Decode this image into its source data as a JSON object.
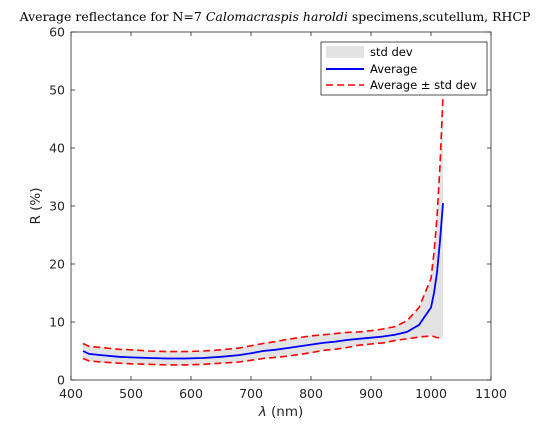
{
  "chart_data": {
    "type": "line",
    "title_prefix": "Average reflectance for N=7 ",
    "title_species": "Calomacraspis haroldi",
    "title_suffix": " specimens,scutellum, RHCP",
    "xlabel_symbol": "λ",
    "xlabel_unit": " (nm)",
    "ylabel": "R (%)",
    "xlim": [
      400,
      1100
    ],
    "ylim": [
      0,
      60
    ],
    "xticks": [
      400,
      500,
      600,
      700,
      800,
      900,
      1000,
      1100
    ],
    "yticks": [
      0,
      10,
      20,
      30,
      40,
      50,
      60
    ],
    "grid": false,
    "legend_position": "top-right",
    "legend": [
      "std dev",
      "Average",
      "Average ± std dev"
    ],
    "colors": {
      "std_fill": "#e3e3e3",
      "average": "#0000ff",
      "bounds": "#ff0000"
    },
    "x": [
      420,
      430,
      450,
      480,
      500,
      530,
      560,
      590,
      620,
      650,
      680,
      700,
      720,
      740,
      760,
      780,
      800,
      820,
      840,
      860,
      880,
      900,
      920,
      940,
      960,
      980,
      1000,
      1005,
      1010,
      1015,
      1020
    ],
    "average": [
      5.0,
      4.5,
      4.3,
      4.0,
      3.9,
      3.8,
      3.7,
      3.7,
      3.8,
      4.0,
      4.3,
      4.6,
      5.0,
      5.2,
      5.5,
      5.8,
      6.1,
      6.4,
      6.6,
      6.9,
      7.1,
      7.3,
      7.5,
      7.8,
      8.3,
      9.5,
      12.5,
      15.0,
      18.5,
      24.0,
      30.5
    ],
    "upper": [
      6.3,
      5.8,
      5.6,
      5.3,
      5.2,
      5.0,
      4.9,
      4.9,
      5.0,
      5.2,
      5.5,
      5.9,
      6.3,
      6.6,
      7.0,
      7.3,
      7.6,
      7.8,
      8.0,
      8.2,
      8.3,
      8.5,
      8.8,
      9.2,
      10.2,
      12.5,
      17.5,
      22.0,
      28.0,
      37.0,
      49.0
    ],
    "lower": [
      3.7,
      3.3,
      3.1,
      2.9,
      2.8,
      2.7,
      2.6,
      2.6,
      2.7,
      2.9,
      3.1,
      3.4,
      3.7,
      3.9,
      4.1,
      4.4,
      4.7,
      5.1,
      5.3,
      5.6,
      6.0,
      6.2,
      6.4,
      6.8,
      7.1,
      7.4,
      7.6,
      7.5,
      7.3,
      7.3,
      7.5
    ]
  }
}
